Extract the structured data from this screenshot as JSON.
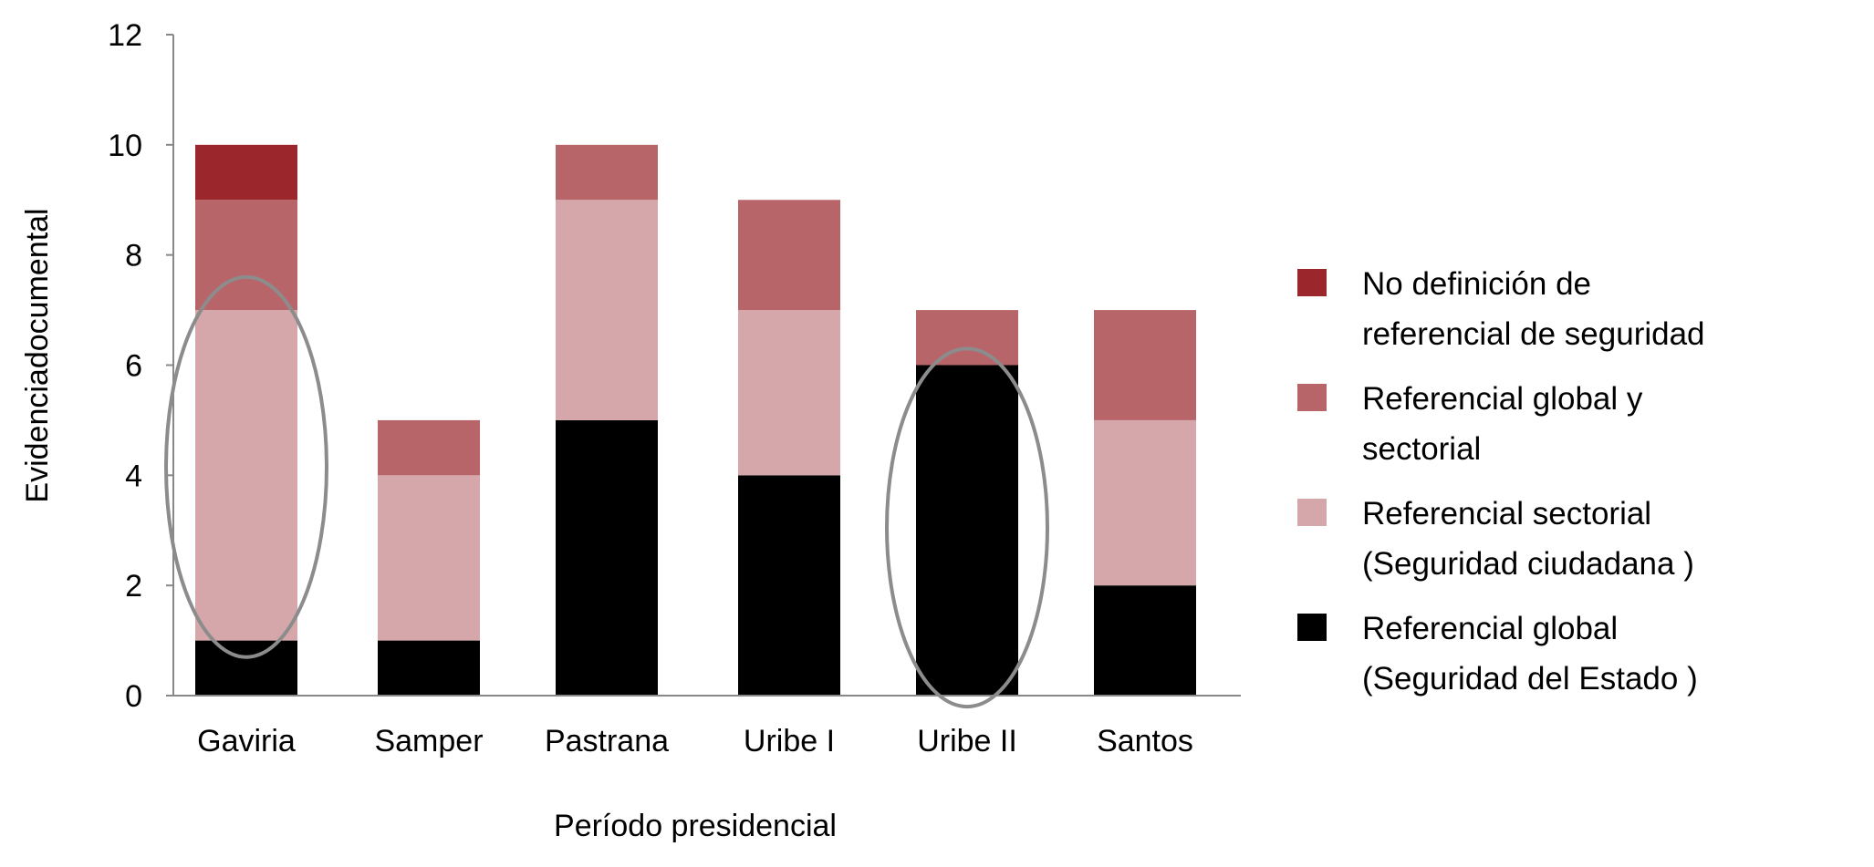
{
  "chart_data": {
    "type": "bar",
    "stacked": true,
    "title": "",
    "xlabel": "Período presidencial",
    "ylabel": "Evidenciadocumental",
    "ylim": [
      0,
      12
    ],
    "yticks": [
      0,
      2,
      4,
      6,
      8,
      10,
      12
    ],
    "categories": [
      "Gaviria",
      "Samper",
      "Pastrana",
      "Uribe I",
      "Uribe II",
      "Santos"
    ],
    "series": [
      {
        "name": "Referencial global (Seguridad del Estado )",
        "legend_lines": [
          "Referencial global",
          "(Seguridad del Estado   )"
        ],
        "color": "#000000",
        "values": [
          1,
          1,
          5,
          4,
          6,
          2
        ]
      },
      {
        "name": "Referencial sectorial (Seguridad ciudadana )",
        "legend_lines": [
          "Referencial sectorial",
          "(Seguridad ciudadana    )"
        ],
        "color": "#d6a7aa",
        "values": [
          6,
          3,
          4,
          3,
          0,
          3
        ]
      },
      {
        "name": "Referencial global y sectorial",
        "legend_lines": [
          "Referencial global y",
          "sectorial"
        ],
        "color": "#b8656a",
        "values": [
          2,
          1,
          1,
          2,
          1,
          2
        ]
      },
      {
        "name": "No definición de referencial de seguridad",
        "legend_lines": [
          "No definición de",
          "referencial de seguridad"
        ],
        "color": "#9b262b",
        "values": [
          1,
          0,
          0,
          0,
          0,
          0
        ]
      }
    ],
    "highlights": [
      {
        "category": "Gaviria",
        "range": [
          0.7,
          7.6
        ]
      },
      {
        "category": "Uribe II",
        "range": [
          -0.2,
          6.3
        ]
      }
    ],
    "grid": false,
    "legend_position": "right"
  },
  "colors": {
    "axis": "#888888",
    "highlight": "#8c8c8c"
  }
}
